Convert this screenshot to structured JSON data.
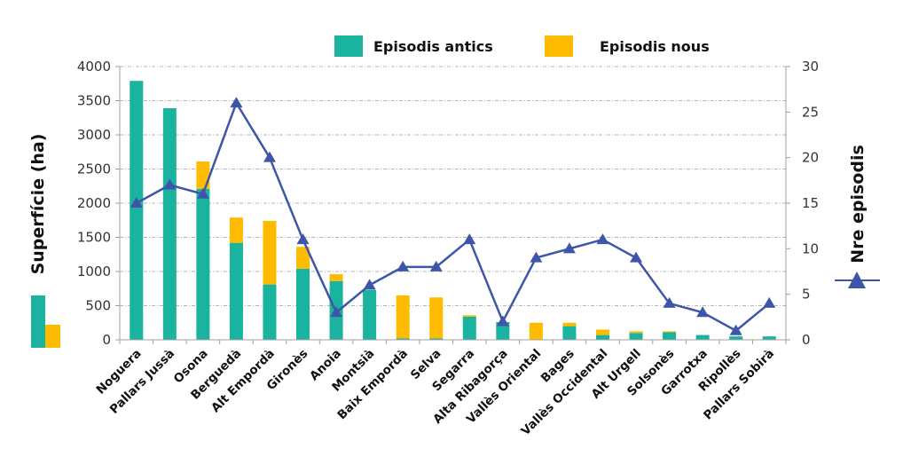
{
  "chart_data": {
    "type": "bar",
    "stacked": true,
    "title": "",
    "categories": [
      "Noguera",
      "Pallars Jussà",
      "Osona",
      "Berguedà",
      "Alt Empordà",
      "Gironès",
      "Anoia",
      "Montsià",
      "Baix Empordà",
      "Selva",
      "Segarra",
      "Alta Ribagorça",
      "Vallès Oriental",
      "Bages",
      "Vallès Occidental",
      "Alt Urgell",
      "Solsonès",
      "Garrotxa",
      "Ripollès",
      "Pallars Sobirà"
    ],
    "series": [
      {
        "name": "Episodis antics",
        "type": "bar",
        "axis": "left",
        "color": "#1AB39F",
        "values": [
          3790,
          3390,
          2210,
          1420,
          810,
          1040,
          860,
          730,
          20,
          20,
          340,
          260,
          0,
          200,
          70,
          100,
          110,
          70,
          50,
          50
        ]
      },
      {
        "name": "Episodis nous",
        "type": "bar",
        "axis": "left",
        "color": "#FFBB00",
        "values": [
          0,
          0,
          400,
          370,
          930,
          320,
          100,
          0,
          630,
          600,
          20,
          0,
          250,
          50,
          80,
          25,
          15,
          0,
          0,
          0
        ]
      },
      {
        "name": "Nre episodis",
        "type": "line",
        "axis": "right",
        "color": "#3F56A8",
        "marker": "triangle",
        "values": [
          15,
          17,
          16,
          26,
          20,
          11,
          3,
          6,
          8,
          8,
          11,
          2,
          9,
          10,
          11,
          9,
          4,
          3,
          1,
          4
        ]
      }
    ],
    "ylabel": "Superfície (ha)",
    "y2label": "Nre episodis",
    "xlabel": "",
    "ylim": [
      0,
      4000
    ],
    "y2lim": [
      0,
      30
    ],
    "yticks": [
      "0",
      "500",
      "1000",
      "1500",
      "2000",
      "2500",
      "3000",
      "3500",
      "4000"
    ],
    "y2ticks": [
      "0",
      "5",
      "10",
      "15",
      "20",
      "25",
      "30"
    ],
    "grid": true,
    "legend": {
      "placement": "top-center",
      "entries": [
        "Episodis antics",
        "Episodis nous"
      ]
    }
  }
}
